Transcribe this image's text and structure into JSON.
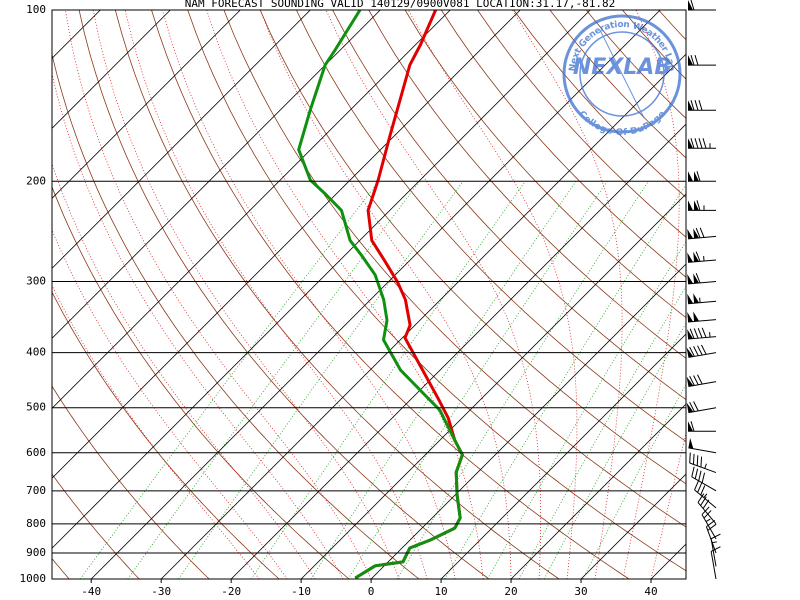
{
  "chart_data": {
    "type": "skew-t",
    "title": "NAM FORECAST SOUNDING VALID 140129/0900V081    LOCATION:31.17,-81.82",
    "stamp": {
      "name": "NEXLAB",
      "top": "Next Generation Weather Lab",
      "bottom": "College Of DuPage"
    },
    "log_y": true,
    "xlim": [
      -45.6,
      45
    ],
    "xticks": [
      -40,
      -30,
      -20,
      -10,
      0,
      10,
      20,
      30,
      40
    ],
    "ylim": [
      1000,
      100
    ],
    "yticks": [
      100,
      200,
      300,
      400,
      500,
      600,
      700,
      800,
      900,
      1000
    ],
    "grid": true,
    "series": [
      {
        "color": "#e00000",
        "pressure": [
          996,
          948,
          933,
          882,
          854,
          814,
          781,
          712,
          649,
          605,
          570,
          521,
          481,
          438,
          377,
          358,
          323,
          301,
          277,
          254,
          225,
          199,
          166,
          144,
          125,
          115,
          100
        ],
        "values": [
          -2.4,
          -1.3,
          2.1,
          1.1,
          2.9,
          4.7,
          4.0,
          0.3,
          -3.1,
          -4.7,
          -7.9,
          -12,
          -16.3,
          -21.4,
          -29.6,
          -30.7,
          -35,
          -38.6,
          -43.3,
          -48.3,
          -53.1,
          -56,
          -60.7,
          -64.3,
          -67.9,
          -69.3,
          -72.1
        ]
      },
      {
        "color": "#109010",
        "pressure": [
          996,
          948,
          933,
          882,
          854,
          814,
          781,
          712,
          649,
          605,
          570,
          505,
          475,
          429,
          380,
          351,
          323,
          292,
          270,
          254,
          225,
          211,
          199,
          176,
          150,
          125,
          118,
          100
        ],
        "values": [
          -2.4,
          -1.3,
          2.1,
          1.1,
          2.9,
          4.7,
          4.0,
          0.3,
          -3.1,
          -4.7,
          -7.9,
          -14.3,
          -18.6,
          -25.7,
          -32.4,
          -34.7,
          -38.1,
          -42.9,
          -47.6,
          -51.4,
          -56.9,
          -61.4,
          -65.7,
          -71.7,
          -75.7,
          -80,
          -80.7,
          -82.9
        ]
      }
    ],
    "winds": {
      "pressure": [
        100,
        125,
        150,
        175,
        200,
        225,
        250,
        275,
        300,
        325,
        350,
        375,
        400,
        450,
        500,
        550,
        600,
        650,
        700,
        750,
        800,
        850,
        900,
        950,
        1000
      ],
      "speed": [
        60,
        70,
        80,
        95,
        110,
        115,
        120,
        115,
        110,
        105,
        100,
        95,
        90,
        80,
        70,
        60,
        50,
        45,
        40,
        35,
        30,
        25,
        20,
        15,
        10
      ],
      "direction": [
        270,
        270,
        270,
        270,
        270,
        270,
        265,
        265,
        265,
        265,
        265,
        265,
        260,
        260,
        260,
        270,
        280,
        290,
        300,
        310,
        320,
        330,
        340,
        350,
        350
      ]
    }
  }
}
